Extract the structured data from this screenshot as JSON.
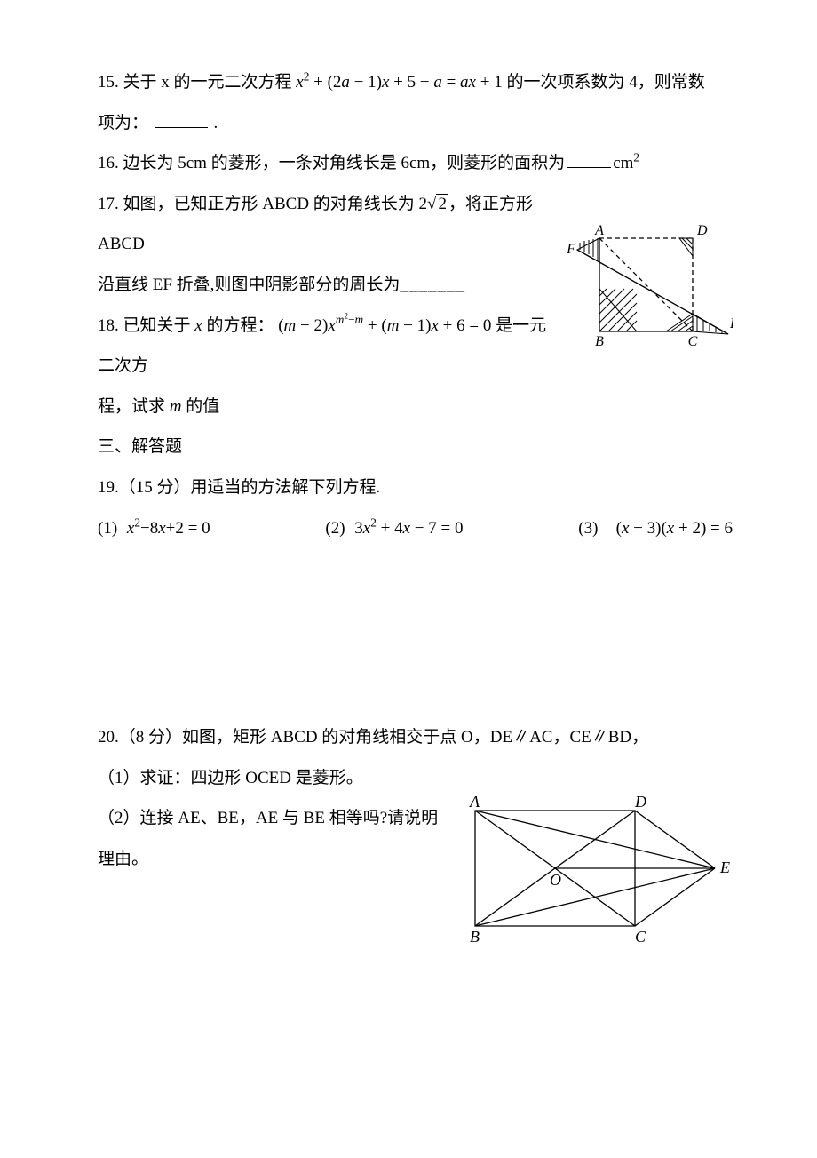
{
  "q15": {
    "prefix": "15. 关于 x 的一元二次方程",
    "equation_parts": {
      "x": "x",
      "sq": "2",
      "plus1": " + (2",
      "a1": "a",
      "minus1": " − 1)",
      "x2": "x",
      "plus2": " + 5 − ",
      "a2": "a",
      "eq": " = ",
      "a3": "ax",
      "plus3": " + 1"
    },
    "midtext": "的一次项系数为 4，则常数",
    "line2": "项为：",
    "period": "."
  },
  "q16": {
    "prefix": "16. 边长为 5cm 的菱形，一条对角线长是 6cm，则菱形的面积为",
    "unit": "cm",
    "sup": "2"
  },
  "q17": {
    "line1_a": "17. 如图，已知正方形 ABCD 的对角线长为 2",
    "sqrt_content": "2",
    "line1_b": "，将正方形 ABCD",
    "line2_a": "沿直线 EF 折叠,则图中阴影部分的周长为",
    "dashes": "_______",
    "figure": {
      "A": "A",
      "B": "B",
      "C": "C",
      "D": "D",
      "E": "E",
      "F": "F",
      "stroke": "#000000",
      "dash": "4,3"
    }
  },
  "q18": {
    "line1_a": "18. 已知关于",
    "x_it": "x",
    "line1_b": "的方程：  ",
    "eq": {
      "lp": "(",
      "m1": "m",
      "minus2": " − 2)",
      "x": "x",
      "exp_m": "m",
      "exp_sq": "2",
      "exp_minus": "−",
      "exp_m2": "m",
      "plus": " + (",
      "m2": "m",
      "minus1": " − 1)",
      "x2": "x",
      "plus6": " + 6 = 0"
    },
    "line1_c": "是一元二次方",
    "line2_a": "程，试求",
    "m_it": "m",
    "line2_b": "的值"
  },
  "sec3": {
    "title": "三、解答题"
  },
  "q19": {
    "header": "19.（15 分）用适当的方法解下列方程.",
    "items": [
      {
        "label": "(1)",
        "eq_html": "<span class='math'>x</span><sup><span class='mathn'>2</span></sup><span class='mathn'>−8</span><span class='math'>x</span><span class='mathn'>+2 = 0</span>"
      },
      {
        "label": "(2)",
        "eq_html": "<span class='mathn'>3</span><span class='math'>x</span><sup><span class='mathn'>2</span></sup><span class='mathn'> + 4</span><span class='math'>x</span><span class='mathn'> − 7 = 0</span>"
      },
      {
        "label": "(3)",
        "eq_html": "<span class='mathn'>(</span><span class='math'>x</span><span class='mathn'> − 3)(</span><span class='math'>x</span><span class='mathn'> + 2) = 6</span>"
      }
    ]
  },
  "q20": {
    "line1": "20.（8 分）如图，矩形 ABCD 的对角线相交于点 O，DE∥AC，CE∥BD，",
    "line2": "（1）求证：四边形 OCED 是菱形。",
    "line3": "（2）连接 AE、BE，AE 与 BE 相等吗?请说明理由。",
    "figure": {
      "A": "A",
      "B": "B",
      "C": "C",
      "D": "D",
      "E": "E",
      "O": "O",
      "stroke": "#000000"
    }
  }
}
